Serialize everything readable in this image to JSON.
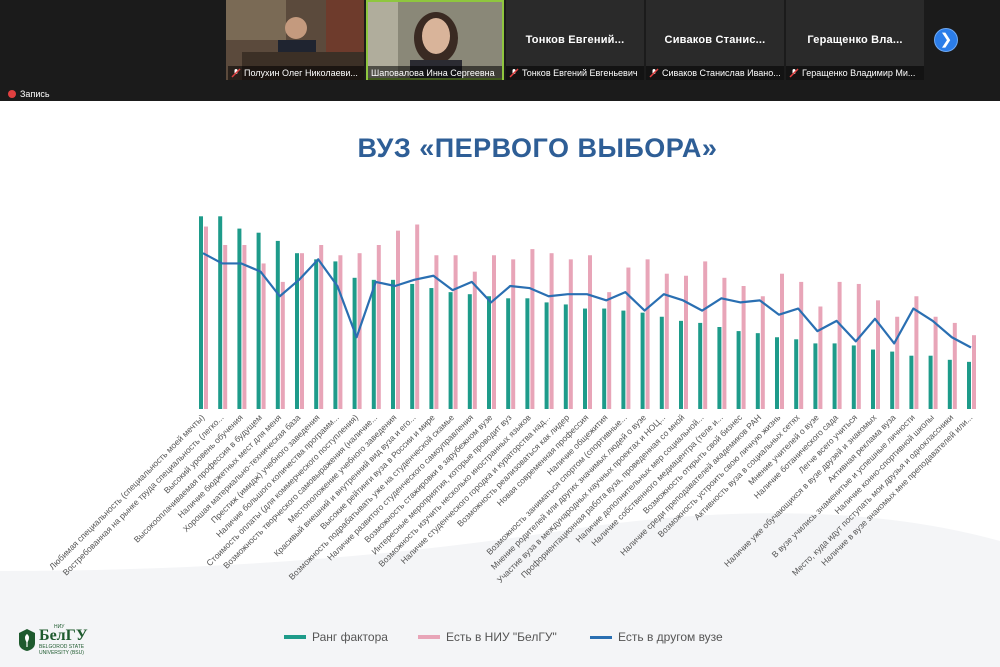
{
  "meeting": {
    "recording_label": "Запись",
    "participants": [
      {
        "name": "Полухин Олег Николаевич",
        "display": "Полухин Олег Николаеви...",
        "has_video": true,
        "muted": true
      },
      {
        "name": "Шаповалова Инна Сергеевна",
        "display": "Шаповалова Инна Сергеевна",
        "has_video": true,
        "muted": false,
        "active": true
      },
      {
        "name": "Тонков Евгений Евгеньевич",
        "display": "Тонков Евгений Евгеньевич",
        "tile_title": "Тонков Евгений...",
        "has_video": false,
        "muted": true
      },
      {
        "name": "Сиваков Станислав Иванович",
        "display": "Сиваков Станислав Ивано...",
        "tile_title": "Сиваков Станис...",
        "has_video": false,
        "muted": true
      },
      {
        "name": "Геращенко Владимир Михайлович",
        "display": "Геращенко Владимир Ми...",
        "tile_title": "Геращенко Вла...",
        "has_video": false,
        "muted": true
      }
    ],
    "next_icon": "chevron-right-icon",
    "colors": {
      "accent": "#2b7de9",
      "active_border": "#8fc63f",
      "muted_mic": "#e04040"
    }
  },
  "slide": {
    "title": "ВУЗ «ПЕРВОГО ВЫБОРА»",
    "logo": {
      "brand": "БелГУ",
      "superscript": "НИУ",
      "line1": "BELGOROD STATE",
      "line2": "UNIVERSITY (BSU)"
    }
  },
  "chart_data": {
    "type": "bar",
    "series": [
      {
        "name": "Ранг фактора",
        "color": "#1e9b8a",
        "kind": "bar",
        "values": [
          94,
          94,
          88,
          86,
          82,
          76,
          73,
          72,
          64,
          63,
          63,
          61,
          59,
          57,
          56,
          55,
          54,
          54,
          52,
          51,
          49,
          49,
          48,
          47,
          45,
          43,
          42,
          40,
          38,
          37,
          35,
          34,
          32,
          32,
          31,
          29,
          28,
          26,
          26,
          24,
          23
        ]
      },
      {
        "name": "Есть в НИУ \"БелГУ\"",
        "color": "#e8a5b8",
        "kind": "bar",
        "values": [
          89,
          80,
          80,
          71,
          62,
          76,
          80,
          75,
          76,
          80,
          87,
          90,
          75,
          75,
          67,
          75,
          73,
          78,
          76,
          73,
          75,
          57,
          69,
          73,
          66,
          65,
          72,
          64,
          60,
          55,
          66,
          62,
          50,
          62,
          61,
          53,
          45,
          55,
          45,
          42,
          36
        ]
      },
      {
        "name": "Есть в другом вузе",
        "color": "#2a6fb2",
        "kind": "line",
        "values": [
          76,
          71,
          71,
          67,
          55,
          63,
          73,
          60,
          35,
          62,
          60,
          63,
          65,
          58,
          62,
          52,
          60,
          59,
          55,
          56,
          56,
          53,
          57,
          48,
          56,
          53,
          48,
          54,
          52,
          53,
          46,
          49,
          38,
          43,
          33,
          44,
          32,
          49,
          43,
          35,
          30
        ]
      }
    ],
    "categories": [
      "Любимая специальность (специальность моей мечты)",
      "Востребованная на рынке труда специальность (легко...",
      "Высокий уровень обучения",
      "Высокооплачиваемая профессия в будущем",
      "Наличие бюджетных мест для меня",
      "Хорошая материально-техническая база",
      "Престиж (имидж) учебного заведения",
      "Наличие большого количества программ...",
      "Стоимость оплаты (для коммерческого поступления)",
      "Возможность творческого самовыражения (наличие...",
      "Местоположение учебного заведения",
      "Красивый внешний и внутренний вид вуза и его...",
      "Высокие рейтинги вуза в России и мире",
      "Возможность подрабатывать уже на студенческой скамье",
      "Наличие развитого студенческого самоуправления",
      "Возможность стажировки в зарубежном вузе",
      "Интересные мероприятия, которые проводит вуз",
      "Возможность изучить несколько иностранных языков",
      "Наличие студенческого городка и кураторства над...",
      "Возможность реализоваться как лидер",
      "Новая современная профессия",
      "Наличие общежития",
      "Возможность заниматься спортом (спортивные...",
      "Мнение родителей или других значимых людей о вузе",
      "Участие вуза в международных научных проектах и НОЦ...",
      "Профориентационная работа вуза, проведенная со мной",
      "Наличие дополнительных мер социальной...",
      "Наличие собственного медиацентра (теле и...",
      "Возможность открыть свой бизнес",
      "Наличие среди преподавателей академиков РАН",
      "Возможность устроить свою личную жизнь",
      "Активность вуза в социальных сетях",
      "Мнение учителей о вузе",
      "Наличие ботанического сада",
      "Легче всего учиться",
      "Наличие уже обучающихся в вузе друзей и знакомых",
      "Активная реклама вуза",
      "В вузе учились знаменитые и успешные личности",
      "Наличие конно-спортивной школы",
      "Место, куда идут поступать мои друзья и одноклассники",
      "Наличие в вузе знакомых мне преподавателей или..."
    ],
    "ylim": [
      0,
      100
    ],
    "grid": false,
    "legend_position": "bottom"
  }
}
